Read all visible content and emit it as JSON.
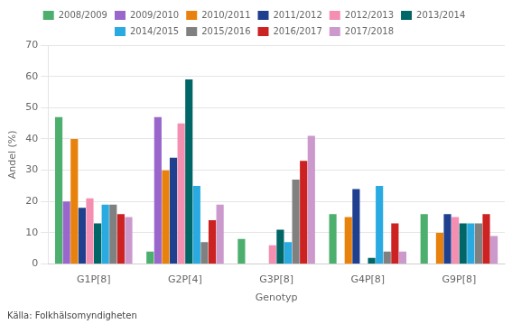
{
  "chart_data": {
    "type": "bar",
    "xlabel": "Genotyp",
    "ylabel": "Andel (%)",
    "annotations": [
      "Källa: Folkhälsomyndigheten"
    ],
    "categories": [
      "G1P[8]",
      "G2P[4]",
      "G3P[8]",
      "G4P[8]",
      "G9P[8]"
    ],
    "series": [
      {
        "name": "2008/2009",
        "color": "#4daf6e",
        "values": [
          47,
          4,
          8,
          16,
          16
        ]
      },
      {
        "name": "2009/2010",
        "color": "#9966cc",
        "values": [
          20,
          47,
          0,
          0,
          0
        ]
      },
      {
        "name": "2010/2011",
        "color": "#e8820c",
        "values": [
          40,
          30,
          0,
          15,
          10
        ]
      },
      {
        "name": "2011/2012",
        "color": "#1f3f8f",
        "values": [
          18,
          34,
          0,
          24,
          16
        ]
      },
      {
        "name": "2012/2013",
        "color": "#f48fb1",
        "values": [
          21,
          45,
          6,
          0,
          15
        ]
      },
      {
        "name": "2013/2014",
        "color": "#006666",
        "values": [
          13,
          59,
          11,
          2,
          13
        ]
      },
      {
        "name": "2014/2015",
        "color": "#29abe2",
        "values": [
          19,
          25,
          7,
          25,
          13
        ]
      },
      {
        "name": "2015/2016",
        "color": "#808080",
        "values": [
          19,
          7,
          27,
          4,
          13
        ]
      },
      {
        "name": "2016/2017",
        "color": "#cc2222",
        "values": [
          16,
          14,
          33,
          13,
          16
        ]
      },
      {
        "name": "2017/2018",
        "color": "#cc99cc",
        "values": [
          15,
          19,
          41,
          4,
          9
        ]
      }
    ],
    "ylim": [
      0,
      70
    ],
    "yticks": [
      0,
      10,
      20,
      30,
      40,
      50,
      60,
      70
    ],
    "grid": true,
    "legend": "top"
  }
}
